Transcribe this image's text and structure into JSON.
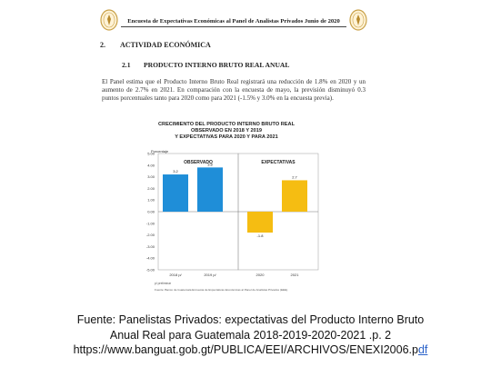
{
  "document": {
    "header": "Encuesta de Expectativas Económicas al Panel de Analistas Privados Junio de 2020",
    "section": {
      "number": "2.",
      "title": "ACTIVIDAD ECONÓMICA"
    },
    "subsection": {
      "number": "2.1",
      "title": "PRODUCTO INTERNO BRUTO REAL ANUAL"
    },
    "paragraph": "El Panel estima que el Producto Interno Bruto Real registrará una reducción de 1.8% en 2020 y un aumento de 2.7% en 2021. En comparación con la encuesta de mayo, la previsión disminuyó 0.3 puntos porcentuales tanto para 2020 como para 2021 (-1.5% y 3.0% en la encuesta previa).",
    "seal_text": "BANCO DE GUATEMALA"
  },
  "chart_data": {
    "type": "bar",
    "title": [
      "CRECIMIENTO DEL PRODUCTO INTERNO BRUTO REAL",
      "OBSERVADO EN 2018 Y 2019",
      "Y EXPECTATIVAS PARA 2020 Y PARA 2021"
    ],
    "ylabel": "Porcentaje",
    "categories": [
      "2018 p/",
      "2019 p/",
      "2020",
      "2021"
    ],
    "values": [
      3.2,
      3.8,
      -1.8,
      2.7
    ],
    "data_labels": [
      "3.2",
      "3.8",
      "-1.8",
      "2.7"
    ],
    "bar_colors": [
      "#1f8ed8",
      "#1f8ed8",
      "#f5bd12",
      "#f5bd12"
    ],
    "ylim": [
      -5.0,
      5.0
    ],
    "yticks": [
      "5.00",
      "4.00",
      "3.00",
      "2.00",
      "1.00",
      "0.00",
      "-1.00",
      "-2.00",
      "-3.00",
      "-4.00",
      "-5.00"
    ],
    "panels": [
      "OBSERVADO",
      "EXPECTATIVAS"
    ],
    "footnote": "p/ preliminar",
    "source": "Fuente: Banco de Guatemala Encuesta de Expectativas Económicas al Panel de Analistas Privados (EEE)."
  },
  "caption": {
    "line1": "Fuente: Panelistas Privados: expectativas del Producto Interno Bruto",
    "line2": "Anual Real para  Guatemala 2018-2019-2020-2021 .p. 2",
    "line3_main": "https://www.banguat.gob.gt/PUBLICA/EEI/ARCHIVOS/ENEXI2006.p",
    "line3_tail": "df"
  },
  "colors": {
    "observed": "#1f8ed8",
    "expected": "#f5bd12",
    "link": "#2a62c9"
  }
}
